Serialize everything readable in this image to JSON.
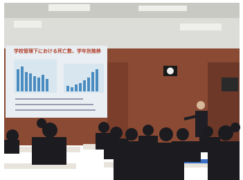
{
  "slide": {
    "title": "学校管理下における死亡数、学年別推移"
  }
}
